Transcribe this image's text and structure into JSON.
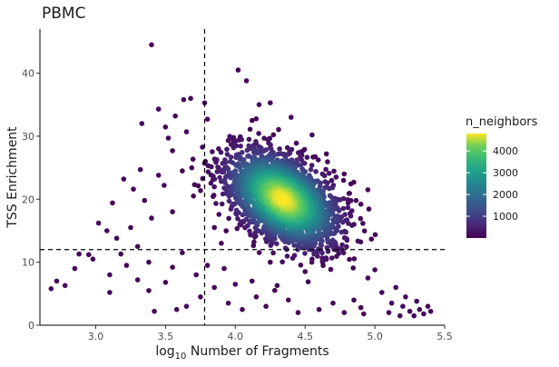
{
  "chart_data": {
    "type": "scatter",
    "title": "PBMC",
    "xlabel_prefix": "log",
    "xlabel_sub": "10",
    "xlabel_suffix": " Number of Fragments",
    "ylabel": "TSS Enrichment",
    "xlim": [
      2.6,
      5.5
    ],
    "ylim": [
      0,
      47
    ],
    "x_ticks": [
      3.0,
      3.5,
      4.0,
      4.5,
      5.0,
      5.5
    ],
    "x_tick_labels": [
      "3.0",
      "3.5",
      "4.0",
      "4.5",
      "5.0",
      "5.5"
    ],
    "y_ticks": [
      0,
      10,
      20,
      30,
      40
    ],
    "y_tick_labels": [
      "0",
      "10",
      "20",
      "30",
      "40"
    ],
    "thresholds": {
      "x": 3.78,
      "y": 12
    },
    "grid": false,
    "color_by": "n_neighbors",
    "colorscale": "viridis",
    "colorbar": {
      "title": "n_neighbors",
      "min": 0,
      "max": 4800,
      "ticks": [
        1000,
        2000,
        3000,
        4000
      ],
      "tick_labels": [
        "1000",
        "2000",
        "3000",
        "4000"
      ]
    },
    "density_center": {
      "x": 4.34,
      "y": 20
    },
    "points": [
      {
        "x": 3.4,
        "y": 44.5
      },
      {
        "x": 4.02,
        "y": 40.5
      },
      {
        "x": 4.08,
        "y": 38.8
      },
      {
        "x": 3.78,
        "y": 35.3
      },
      {
        "x": 3.63,
        "y": 35.8
      },
      {
        "x": 3.68,
        "y": 36.0
      },
      {
        "x": 3.45,
        "y": 34.3
      },
      {
        "x": 4.25,
        "y": 35.3
      },
      {
        "x": 4.17,
        "y": 35.0
      },
      {
        "x": 3.33,
        "y": 32.0
      },
      {
        "x": 3.57,
        "y": 33.2
      },
      {
        "x": 3.8,
        "y": 32.7
      },
      {
        "x": 3.65,
        "y": 30.7
      },
      {
        "x": 3.52,
        "y": 29.7
      },
      {
        "x": 3.55,
        "y": 27.7
      },
      {
        "x": 3.32,
        "y": 24.7
      },
      {
        "x": 3.45,
        "y": 23.8
      },
      {
        "x": 3.2,
        "y": 23.2
      },
      {
        "x": 3.27,
        "y": 21.6
      },
      {
        "x": 3.12,
        "y": 19.4
      },
      {
        "x": 3.35,
        "y": 19.8
      },
      {
        "x": 3.49,
        "y": 22.2
      },
      {
        "x": 3.62,
        "y": 24.5
      },
      {
        "x": 3.02,
        "y": 16.2
      },
      {
        "x": 3.08,
        "y": 15.0
      },
      {
        "x": 3.25,
        "y": 15.5
      },
      {
        "x": 3.4,
        "y": 17.0
      },
      {
        "x": 3.15,
        "y": 13.8
      },
      {
        "x": 3.55,
        "y": 18.0
      },
      {
        "x": 3.7,
        "y": 20.5
      },
      {
        "x": 2.95,
        "y": 11.2
      },
      {
        "x": 2.85,
        "y": 9.0
      },
      {
        "x": 2.72,
        "y": 7.0
      },
      {
        "x": 2.68,
        "y": 5.8
      },
      {
        "x": 2.78,
        "y": 6.3
      },
      {
        "x": 2.88,
        "y": 11.3
      },
      {
        "x": 2.98,
        "y": 10.5
      },
      {
        "x": 3.1,
        "y": 8.0
      },
      {
        "x": 3.1,
        "y": 5.2
      },
      {
        "x": 3.18,
        "y": 11.3
      },
      {
        "x": 3.22,
        "y": 9.5
      },
      {
        "x": 3.3,
        "y": 7.2
      },
      {
        "x": 3.3,
        "y": 12.5
      },
      {
        "x": 3.38,
        "y": 10.0
      },
      {
        "x": 3.38,
        "y": 5.5
      },
      {
        "x": 3.42,
        "y": 2.2
      },
      {
        "x": 3.5,
        "y": 6.8
      },
      {
        "x": 3.55,
        "y": 9.2
      },
      {
        "x": 3.58,
        "y": 2.5
      },
      {
        "x": 3.62,
        "y": 11.5
      },
      {
        "x": 3.65,
        "y": 3.0
      },
      {
        "x": 3.72,
        "y": 8.0
      },
      {
        "x": 3.75,
        "y": 4.5
      },
      {
        "x": 3.8,
        "y": 9.5
      },
      {
        "x": 3.85,
        "y": 6.0
      },
      {
        "x": 3.92,
        "y": 9.0
      },
      {
        "x": 3.95,
        "y": 3.5
      },
      {
        "x": 4.0,
        "y": 6.5
      },
      {
        "x": 4.05,
        "y": 2.5
      },
      {
        "x": 4.12,
        "y": 7.0
      },
      {
        "x": 4.15,
        "y": 4.5
      },
      {
        "x": 4.22,
        "y": 3.0
      },
      {
        "x": 4.25,
        "y": 10.0
      },
      {
        "x": 4.3,
        "y": 6.3
      },
      {
        "x": 4.38,
        "y": 4.0
      },
      {
        "x": 4.45,
        "y": 2.0
      },
      {
        "x": 4.5,
        "y": 8.5
      },
      {
        "x": 4.55,
        "y": 10.5
      },
      {
        "x": 4.6,
        "y": 2.5
      },
      {
        "x": 4.7,
        "y": 3.5
      },
      {
        "x": 4.78,
        "y": 2.0
      },
      {
        "x": 4.85,
        "y": 4.0
      },
      {
        "x": 4.9,
        "y": 2.8
      },
      {
        "x": 4.95,
        "y": 7.5
      },
      {
        "x": 5.0,
        "y": 8.8
      },
      {
        "x": 4.92,
        "y": 1.8
      },
      {
        "x": 5.05,
        "y": 5.2
      },
      {
        "x": 5.1,
        "y": 2.0
      },
      {
        "x": 5.12,
        "y": 3.5
      },
      {
        "x": 5.15,
        "y": 6.0
      },
      {
        "x": 5.18,
        "y": 1.5
      },
      {
        "x": 5.2,
        "y": 3.0
      },
      {
        "x": 5.22,
        "y": 4.5
      },
      {
        "x": 5.25,
        "y": 2.2
      },
      {
        "x": 5.28,
        "y": 1.5
      },
      {
        "x": 5.3,
        "y": 3.8
      },
      {
        "x": 5.32,
        "y": 2.5
      },
      {
        "x": 5.35,
        "y": 1.8
      },
      {
        "x": 5.38,
        "y": 3.0
      },
      {
        "x": 5.4,
        "y": 2.2
      },
      {
        "x": 4.85,
        "y": 16.0
      },
      {
        "x": 4.9,
        "y": 19.2
      },
      {
        "x": 4.8,
        "y": 13.5
      },
      {
        "x": 4.7,
        "y": 12.5
      },
      {
        "x": 4.95,
        "y": 21.5
      },
      {
        "x": 4.78,
        "y": 24.0
      },
      {
        "x": 4.55,
        "y": 30.2
      },
      {
        "x": 4.4,
        "y": 33.0
      },
      {
        "x": 3.9,
        "y": 13.0
      },
      {
        "x": 3.85,
        "y": 15.5
      },
      {
        "x": 3.88,
        "y": 28.0
      },
      {
        "x": 4.12,
        "y": 32.5
      }
    ]
  }
}
